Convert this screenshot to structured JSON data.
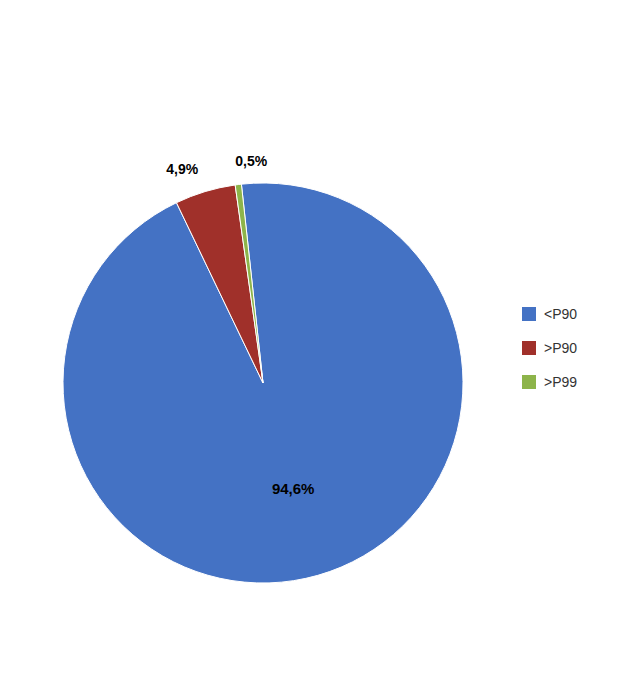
{
  "chart_data": {
    "type": "pie",
    "categories": [
      "<P90",
      ">P90",
      ">P99"
    ],
    "values": [
      94.6,
      4.9,
      0.5
    ],
    "value_labels": [
      "94,6%",
      "4,9%",
      "0,5%"
    ],
    "colors": [
      "#4472C4",
      "#A0302A",
      "#8DB44A"
    ],
    "data_labels": true,
    "legend": "right"
  }
}
